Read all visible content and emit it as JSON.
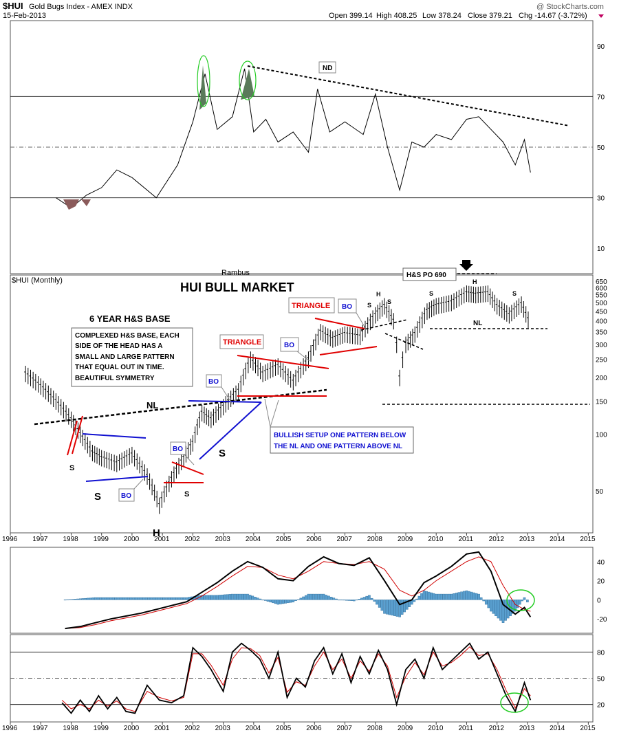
{
  "header": {
    "symbol": "$HUI",
    "name": "Gold Bugs Index - AMEX INDX",
    "date": "15-Feb-2013",
    "open": "Open 399.14",
    "high": "High 408.25",
    "low": "Low 378.24",
    "close": "Close 379.21",
    "change": "Chg -14.67 (-3.72%)",
    "credit": "@ StockCharts.com"
  },
  "main_chart": {
    "legend": "$HUI (Monthly)",
    "author": "Rambus",
    "title": "HUI BULL MARKET"
  },
  "annotations": {
    "base_title": "6 YEAR H&S BASE",
    "base_note": [
      "COMPLEXED H&S BASE, EACH",
      "SIDE OF THE HEAD HAS A",
      "SMALL AND LARGE PATTERN",
      "THAT EQUAL OUT IN TIME.",
      "BEAUTIFUL SYMMETRY"
    ],
    "triangle1": "TRIANGLE",
    "triangle2": "TRIANGLE",
    "bo": "BO",
    "nd": "ND",
    "nl": "NL",
    "hs_po": "H&S PO 690",
    "bullish_note": [
      "BULLISH SETUP ONE PATTERN BELOW",
      "THE NL AND ONE PATTERN ABOVE NL"
    ],
    "s": "S",
    "h": "H"
  },
  "colors": {
    "price": "#000000",
    "red_trend": "#e00000",
    "blue_trend": "#1010d0",
    "histogram": "#5aa0d0",
    "signal": "#d00000",
    "green_circle": "#22cc22",
    "grid": "#222222"
  },
  "chart_data": [
    {
      "type": "line",
      "panel": "RSI",
      "yticks": [
        10,
        30,
        50,
        70,
        90
      ],
      "ylim": [
        0,
        100
      ],
      "x": [
        1997.5,
        1998.0,
        1998.5,
        1999.0,
        1999.5,
        2000.0,
        2000.8,
        2001.5,
        2002.0,
        2002.4,
        2002.8,
        2003.3,
        2003.7,
        2004.0,
        2004.4,
        2004.8,
        2005.3,
        2005.8,
        2006.1,
        2006.5,
        2007.0,
        2007.6,
        2008.0,
        2008.4,
        2008.8,
        2009.2,
        2009.6,
        2010.0,
        2010.5,
        2011.0,
        2011.4,
        2011.8,
        2012.2,
        2012.6,
        2012.9,
        2013.1
      ],
      "values": [
        30,
        26,
        31,
        34,
        41,
        38,
        30,
        43,
        60,
        79,
        57,
        62,
        81,
        56,
        61,
        52,
        56,
        48,
        73,
        56,
        60,
        55,
        71,
        50,
        33,
        52,
        50,
        55,
        53,
        61,
        62,
        57,
        52,
        43,
        53,
        40
      ],
      "levels": [
        30,
        50,
        70
      ]
    },
    {
      "type": "bar",
      "panel": "price",
      "series_name": "$HUI (Monthly)",
      "scale": "log",
      "yticks": [
        50,
        100,
        150,
        200,
        250,
        300,
        350,
        400,
        450,
        500,
        550,
        600,
        650
      ],
      "xticks": [
        "1996",
        "1997",
        "1998",
        "1999",
        "2000",
        "2001",
        "2002",
        "2003",
        "2004",
        "2005",
        "2006",
        "2007",
        "2008",
        "2009",
        "2010",
        "2011",
        "2012",
        "2013",
        "2014",
        "2015"
      ],
      "x": [
        1996.5,
        1997.0,
        1997.5,
        1998.0,
        1998.3,
        1998.7,
        1999.0,
        1999.5,
        2000.0,
        2000.5,
        2000.9,
        2001.3,
        2001.7,
        2002.0,
        2002.3,
        2002.6,
        2003.0,
        2003.5,
        2003.9,
        2004.3,
        2004.8,
        2005.3,
        2005.8,
        2006.2,
        2006.6,
        2007.0,
        2007.5,
        2008.0,
        2008.3,
        2008.6,
        2008.8,
        2009.0,
        2009.3,
        2009.7,
        2010.0,
        2010.5,
        2011.0,
        2011.3,
        2011.7,
        2012.0,
        2012.4,
        2012.8,
        2013.1
      ],
      "values": [
        210,
        180,
        150,
        120,
        100,
        80,
        75,
        70,
        78,
        60,
        42,
        58,
        75,
        90,
        130,
        120,
        140,
        170,
        250,
        210,
        230,
        190,
        250,
        350,
        320,
        340,
        330,
        430,
        480,
        400,
        200,
        300,
        340,
        450,
        480,
        500,
        560,
        550,
        560,
        480,
        430,
        490,
        380
      ]
    },
    {
      "type": "line",
      "panel": "MACD",
      "yticks": [
        -20,
        0,
        20,
        40
      ],
      "ylim": [
        -35,
        55
      ],
      "x": [
        1997.8,
        1998.3,
        1998.8,
        1999.3,
        1999.8,
        2000.3,
        2000.8,
        2001.3,
        2001.8,
        2002.3,
        2002.8,
        2003.3,
        2003.8,
        2004.3,
        2004.8,
        2005.3,
        2005.8,
        2006.3,
        2006.8,
        2007.3,
        2007.8,
        2008.3,
        2008.8,
        2009.2,
        2009.6,
        2010.0,
        2010.5,
        2011.0,
        2011.4,
        2011.8,
        2012.2,
        2012.6,
        2012.9,
        2013.1
      ],
      "values": [
        -30,
        -28,
        -24,
        -20,
        -17,
        -14,
        -10,
        -6,
        -2,
        8,
        18,
        30,
        40,
        34,
        22,
        20,
        35,
        45,
        38,
        36,
        44,
        20,
        -5,
        0,
        18,
        25,
        35,
        48,
        50,
        30,
        -5,
        -15,
        -8,
        -18
      ],
      "signal_values": [
        -30,
        -29,
        -26,
        -22,
        -19,
        -16,
        -12,
        -8,
        -4,
        4,
        14,
        25,
        35,
        34,
        26,
        22,
        30,
        40,
        38,
        37,
        40,
        32,
        10,
        4,
        10,
        20,
        30,
        40,
        45,
        40,
        15,
        -5,
        -10,
        -12
      ]
    },
    {
      "type": "line",
      "panel": "Stochastic",
      "yticks": [
        20,
        50,
        80
      ],
      "ylim": [
        0,
        100
      ],
      "x": [
        1997.7,
        1998.0,
        1998.3,
        1998.6,
        1998.9,
        1999.2,
        1999.5,
        1999.8,
        2000.1,
        2000.5,
        2000.9,
        2001.3,
        2001.7,
        2002.0,
        2002.3,
        2002.6,
        2003.0,
        2003.3,
        2003.6,
        2003.9,
        2004.2,
        2004.5,
        2004.8,
        2005.1,
        2005.4,
        2005.7,
        2006.0,
        2006.3,
        2006.6,
        2006.9,
        2007.2,
        2007.5,
        2007.8,
        2008.1,
        2008.4,
        2008.7,
        2009.0,
        2009.3,
        2009.6,
        2009.9,
        2010.2,
        2010.5,
        2010.8,
        2011.1,
        2011.4,
        2011.7,
        2012.0,
        2012.3,
        2012.6,
        2012.9,
        2013.1
      ],
      "values": [
        22,
        10,
        25,
        12,
        30,
        15,
        28,
        12,
        10,
        42,
        25,
        22,
        30,
        85,
        75,
        60,
        35,
        80,
        90,
        82,
        72,
        50,
        80,
        28,
        50,
        40,
        70,
        85,
        55,
        78,
        45,
        75,
        55,
        82,
        60,
        20,
        60,
        72,
        50,
        85,
        60,
        70,
        80,
        90,
        72,
        80,
        55,
        30,
        12,
        45,
        25
      ],
      "signal_values": [
        25,
        15,
        20,
        15,
        25,
        18,
        24,
        15,
        12,
        35,
        28,
        24,
        28,
        78,
        78,
        65,
        42,
        72,
        85,
        84,
        76,
        56,
        74,
        34,
        46,
        42,
        64,
        80,
        60,
        72,
        50,
        70,
        58,
        78,
        64,
        28,
        52,
        68,
        54,
        80,
        64,
        68,
        76,
        86,
        76,
        78,
        60,
        36,
        16,
        38,
        30
      ]
    }
  ]
}
